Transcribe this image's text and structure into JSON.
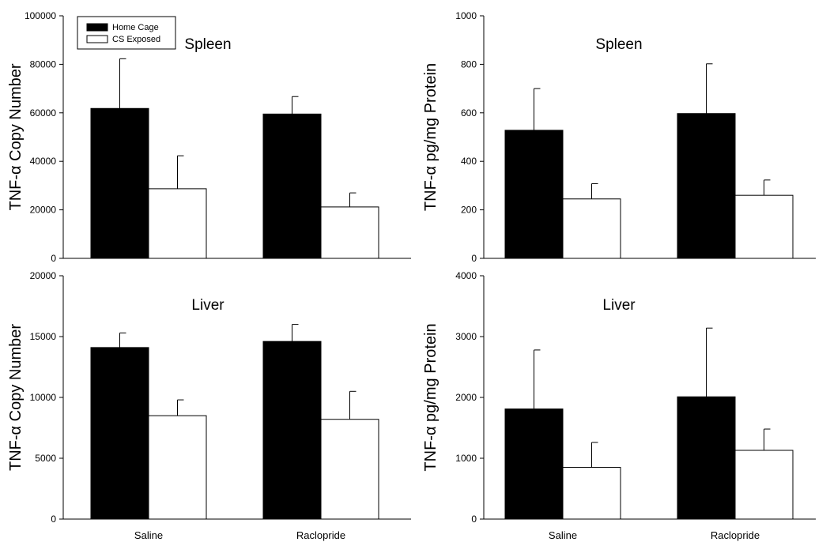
{
  "chart_data": [
    {
      "type": "bar",
      "title": "Spleen",
      "ylabel": "TNF-α Copy Number",
      "xlabel": "",
      "categories": [
        "Saline",
        "Raclopride"
      ],
      "show_categories": false,
      "ylim": [
        0,
        100000
      ],
      "yticks": [
        0,
        20000,
        40000,
        60000,
        80000,
        100000
      ],
      "series": [
        {
          "name": "Home Cage",
          "color": "#000000",
          "values": [
            61800,
            59500
          ],
          "errors": [
            20500,
            7200
          ]
        },
        {
          "name": "CS Exposed",
          "color": "#ffffff",
          "values": [
            28700,
            21200
          ],
          "errors": [
            13600,
            5800
          ]
        }
      ],
      "legend": {
        "location": "top-left",
        "entries": [
          "Home Cage",
          "CS Exposed"
        ]
      }
    },
    {
      "type": "bar",
      "title": "Spleen",
      "ylabel": "TNF-α pg/mg Protein",
      "xlabel": "",
      "categories": [
        "Saline",
        "Raclopride"
      ],
      "show_categories": false,
      "ylim": [
        0,
        1000
      ],
      "yticks": [
        0,
        200,
        400,
        600,
        800,
        1000
      ],
      "series": [
        {
          "name": "Home Cage",
          "color": "#000000",
          "values": [
            528,
            597
          ],
          "errors": [
            172,
            205
          ]
        },
        {
          "name": "CS Exposed",
          "color": "#ffffff",
          "values": [
            245,
            260
          ],
          "errors": [
            63,
            63
          ]
        }
      ]
    },
    {
      "type": "bar",
      "title": "Liver",
      "ylabel": "TNF-α Copy Number",
      "xlabel": "",
      "categories": [
        "Saline",
        "Raclopride"
      ],
      "show_categories": true,
      "ylim": [
        0,
        20000
      ],
      "yticks": [
        0,
        5000,
        10000,
        15000,
        20000
      ],
      "series": [
        {
          "name": "Home Cage",
          "color": "#000000",
          "values": [
            14100,
            14600
          ],
          "errors": [
            1200,
            1400
          ]
        },
        {
          "name": "CS Exposed",
          "color": "#ffffff",
          "values": [
            8500,
            8200
          ],
          "errors": [
            1300,
            2300
          ]
        }
      ]
    },
    {
      "type": "bar",
      "title": "Liver",
      "ylabel": "TNF-α pg/mg Protein",
      "xlabel": "",
      "categories": [
        "Saline",
        "Raclopride"
      ],
      "show_categories": true,
      "ylim": [
        0,
        4000
      ],
      "yticks": [
        0,
        1000,
        2000,
        3000,
        4000
      ],
      "series": [
        {
          "name": "Home Cage",
          "color": "#000000",
          "values": [
            1810,
            2010
          ],
          "errors": [
            970,
            1130
          ]
        },
        {
          "name": "CS Exposed",
          "color": "#ffffff",
          "values": [
            850,
            1130
          ],
          "errors": [
            410,
            350
          ]
        }
      ]
    }
  ]
}
